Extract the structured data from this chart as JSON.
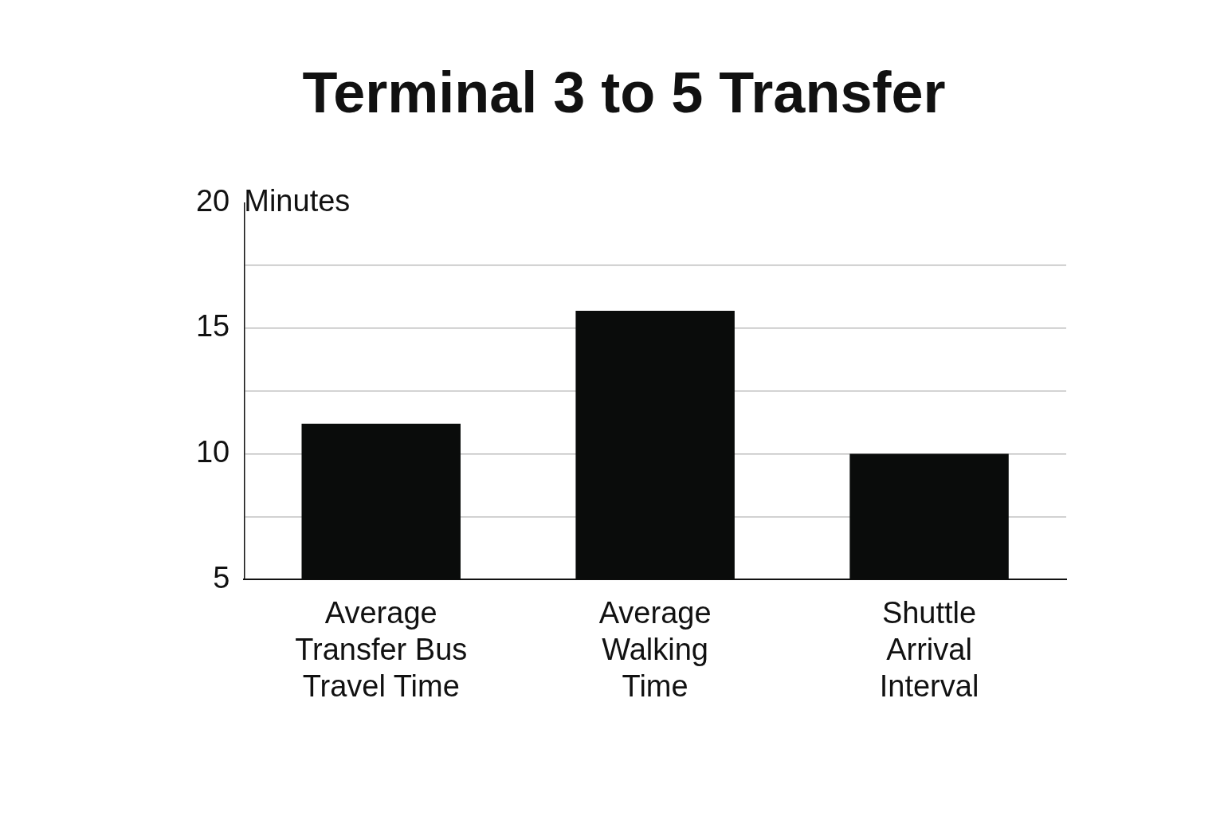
{
  "chart_data": {
    "type": "bar",
    "title": "Terminal 3 to 5 Transfer",
    "ylabel": "Minutes",
    "categories": [
      "Average\nTransfer Bus\nTravel Time",
      "Average\nWalking\nTime",
      "Shuttle\nArrival\nInterval"
    ],
    "values": [
      11.2,
      15.7,
      10
    ],
    "color": "#0a0c0b",
    "ylim": [
      5,
      20
    ],
    "yticks": [
      5,
      {
        "value": 7.5,
        "label": null
      },
      10,
      {
        "value": 12.5,
        "label": null
      },
      15,
      {
        "value": 17.5,
        "label": null
      },
      20
    ],
    "grid": "y",
    "legend": false
  }
}
